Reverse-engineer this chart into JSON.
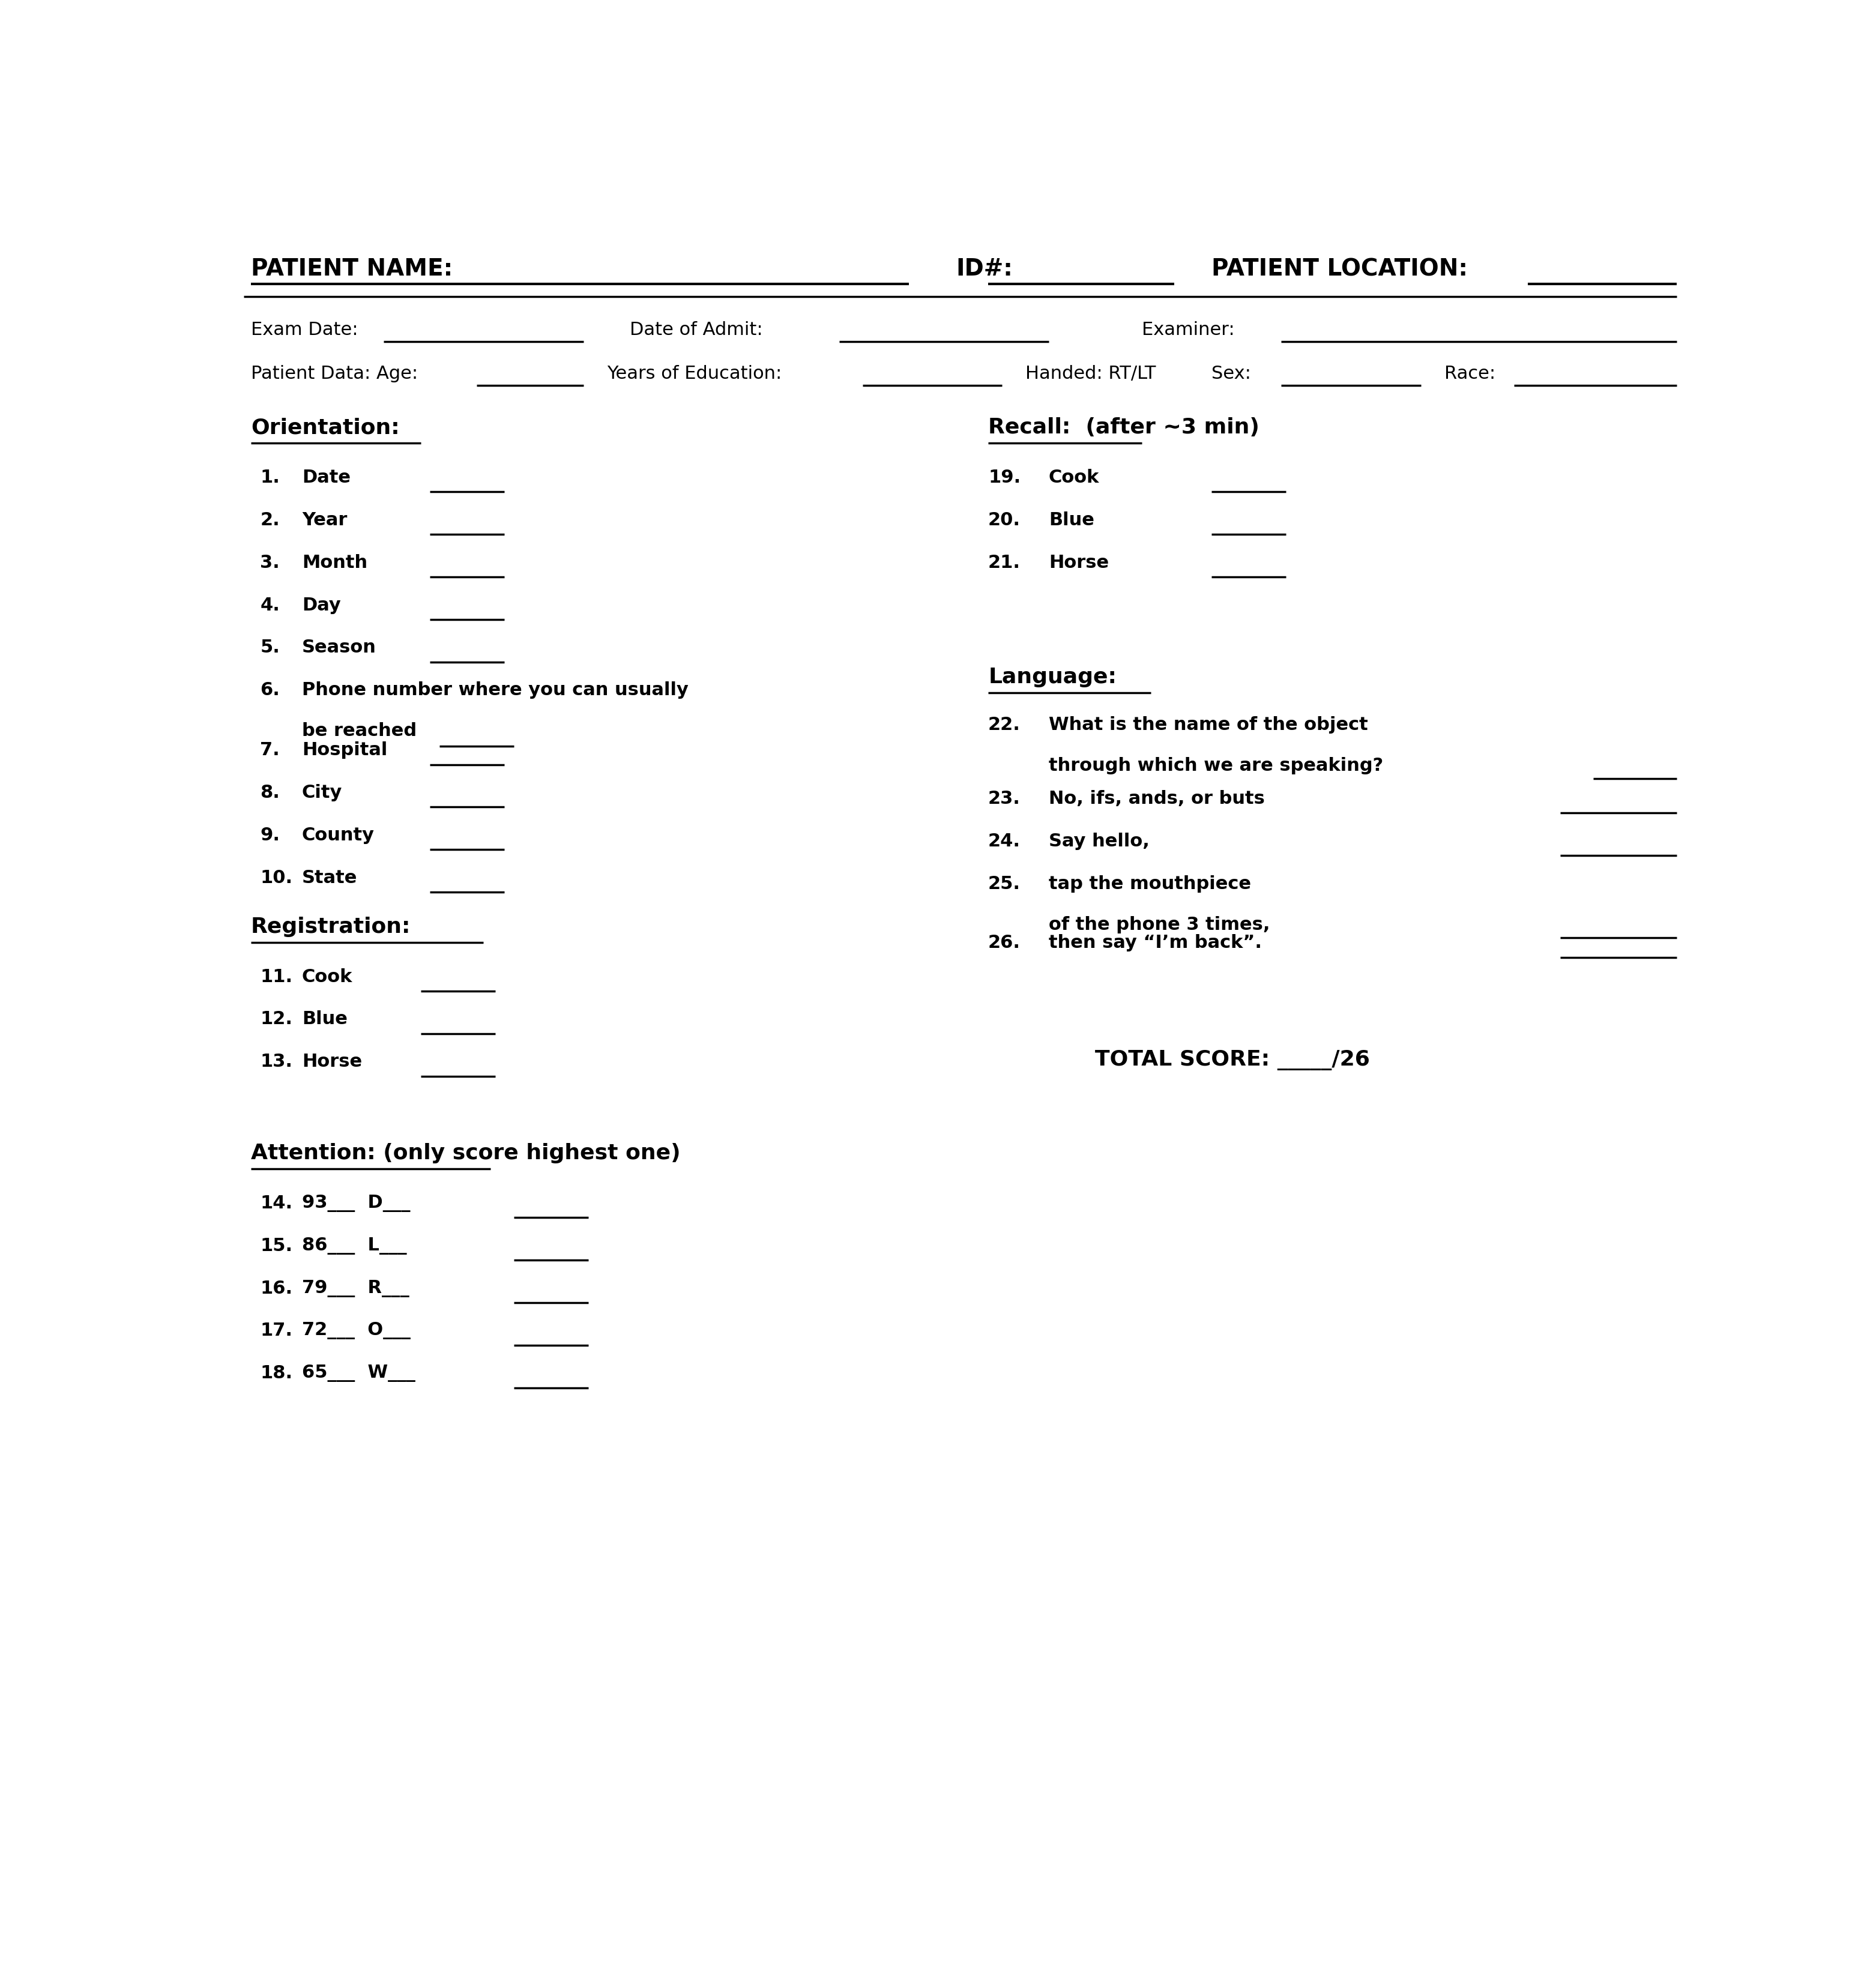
{
  "bg_color": "#ffffff",
  "text_color": "#000000",
  "title_row": {
    "patient_name_label": "PATIENT NAME:",
    "id_label": "ID#:",
    "patient_location_label": "PATIENT LOCATION:"
  },
  "row2": {
    "exam_date_label": "Exam Date:",
    "date_of_admit_label": "Date of Admit:",
    "examiner_label": "Examiner:"
  },
  "row3": {
    "patient_data_label": "Patient Data: Age:",
    "years_edu_label": "Years of Education:",
    "handed_label": "Handed: RT/LT",
    "sex_label": "Sex:",
    "race_label": "Race:"
  },
  "orientation_header": "Orientation:",
  "orientation_items": [
    {
      "num": "1.",
      "text": "Date"
    },
    {
      "num": "2.",
      "text": "Year"
    },
    {
      "num": "3.",
      "text": "Month"
    },
    {
      "num": "4.",
      "text": "Day"
    },
    {
      "num": "5.",
      "text": "Season"
    },
    {
      "num": "6.",
      "text": "Phone number where you can usually",
      "line2": "be reached"
    },
    {
      "num": "7.",
      "text": "Hospital"
    },
    {
      "num": "8.",
      "text": "City"
    },
    {
      "num": "9.",
      "text": "County"
    },
    {
      "num": "10.",
      "text": "State"
    }
  ],
  "recall_header": "Recall:  (after ~3 min)",
  "recall_items": [
    {
      "num": "19.",
      "text": "Cook"
    },
    {
      "num": "20.",
      "text": "Blue"
    },
    {
      "num": "21.",
      "text": "Horse"
    }
  ],
  "language_header": "Language:",
  "language_items": [
    {
      "num": "22.",
      "text": "What is the name of the object",
      "line2": "through which we are speaking?"
    },
    {
      "num": "23.",
      "text": "No, ifs, ands, or buts"
    },
    {
      "num": "24.",
      "text": "Say hello,"
    },
    {
      "num": "25.",
      "text": "tap the mouthpiece",
      "line2": "of the phone 3 times,"
    },
    {
      "num": "26.",
      "text": "then say “I’m back”."
    }
  ],
  "registration_header": "Registration:",
  "registration_items": [
    {
      "num": "11.",
      "text": "Cook"
    },
    {
      "num": "12.",
      "text": "Blue"
    },
    {
      "num": "13.",
      "text": "Horse"
    }
  ],
  "total_score_label": "TOTAL SCORE: _____/26",
  "attention_header": "Attention: (only score highest one)",
  "attention_items": [
    {
      "num": "14.",
      "text": "93___  D___"
    },
    {
      "num": "15.",
      "text": "86___  L___"
    },
    {
      "num": "16.",
      "text": "79___  R___"
    },
    {
      "num": "17.",
      "text": "72___  O___"
    },
    {
      "num": "18.",
      "text": "65___  W___"
    }
  ]
}
